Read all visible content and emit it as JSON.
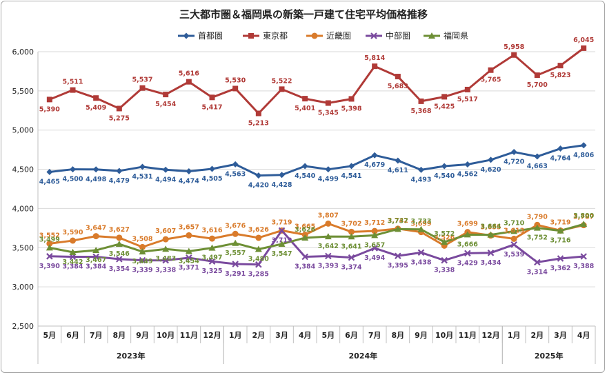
{
  "chart_data": {
    "type": "line",
    "title": "三大都市圏＆福岡県の新築一戸建て住宅平均価格推移",
    "xlabel": "",
    "ylabel": "",
    "ylim": [
      2500,
      6000
    ],
    "yticks": [
      2500,
      3000,
      3500,
      4000,
      4500,
      5000,
      5500,
      6000
    ],
    "ytick_labels": [
      "2,500",
      "3,000",
      "3,500",
      "4,000",
      "4,500",
      "5,000",
      "5,500",
      "6,000"
    ],
    "grid": true,
    "legend_position": "top",
    "categories": [
      "5月",
      "6月",
      "7月",
      "8月",
      "9月",
      "10月",
      "11月",
      "12月",
      "1月",
      "2月",
      "3月",
      "4月",
      "5月",
      "6月",
      "7月",
      "8月",
      "9月",
      "10月",
      "11月",
      "12月",
      "1月",
      "2月",
      "3月",
      "4月"
    ],
    "years": [
      {
        "label": "2023年",
        "start": 0,
        "end": 7
      },
      {
        "label": "2024年",
        "start": 8,
        "end": 19
      },
      {
        "label": "2025年",
        "start": 20,
        "end": 23
      }
    ],
    "series": [
      {
        "name": "首都圏",
        "color": "#2e5c99",
        "marker": "diamond",
        "label_pos": "below",
        "values": [
          4465,
          4500,
          4498,
          4479,
          4531,
          4494,
          4474,
          4505,
          4563,
          4420,
          4428,
          4540,
          4499,
          4541,
          4679,
          4611,
          4493,
          4540,
          4562,
          4620,
          4720,
          4663,
          4764,
          4806
        ]
      },
      {
        "name": "東京都",
        "color": "#b03a37",
        "marker": "square",
        "label_pos": "alt",
        "values": [
          5390,
          5511,
          5409,
          5275,
          5537,
          5454,
          5616,
          5417,
          5530,
          5213,
          5522,
          5401,
          5345,
          5398,
          5814,
          5683,
          5368,
          5425,
          5517,
          5765,
          5958,
          5700,
          5823,
          6045
        ]
      },
      {
        "name": "近畿圏",
        "color": "#d97b2b",
        "marker": "circle",
        "label_pos": "above",
        "values": [
          3552,
          3590,
          3647,
          3627,
          3508,
          3607,
          3657,
          3616,
          3676,
          3626,
          3719,
          3665,
          3807,
          3702,
          3712,
          3742,
          3699,
          3526,
          3699,
          3655,
          3613,
          3790,
          3719,
          3787
        ]
      },
      {
        "name": "中部圏",
        "color": "#7a4a9e",
        "marker": "x",
        "label_pos": "below",
        "values": [
          3390,
          3384,
          3384,
          3354,
          3339,
          3338,
          3371,
          3325,
          3291,
          3285,
          3719,
          3384,
          3393,
          3374,
          3494,
          3395,
          3438,
          3338,
          3429,
          3434,
          3539,
          3314,
          3362,
          3388
        ]
      },
      {
        "name": "福岡県",
        "color": "#6d8f35",
        "marker": "triangle",
        "label_pos": "mixed",
        "values": [
          3499,
          3442,
          3467,
          3546,
          3449,
          3483,
          3454,
          3497,
          3557,
          3480,
          3547,
          3626,
          3642,
          3641,
          3657,
          3737,
          3733,
          3572,
          3666,
          3664,
          3710,
          3752,
          3716,
          3800
        ]
      }
    ]
  }
}
